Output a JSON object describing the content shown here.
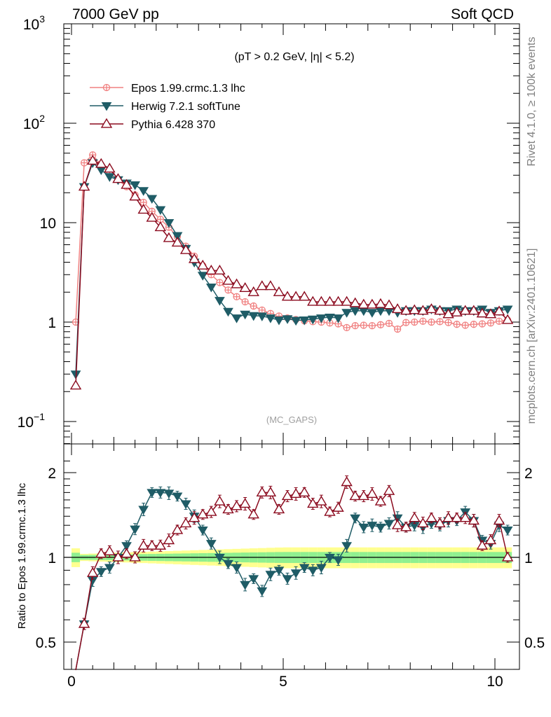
{
  "header": {
    "left": "7000 GeV pp",
    "right": "Soft QCD"
  },
  "side_labels": {
    "top": "Rivet 4.1.0, ≥ 100k events",
    "bottom": "mcplots.cern.ch [arXiv:2401.10621]"
  },
  "plot": {
    "cut_label": "(pT > 0.2 GeV, |η| < 5.2)",
    "watermark": "(MC_GAPS)",
    "ratio_ylabel": "Ratio to Epos 1.99.crmc.1.3 lhc"
  },
  "legend": [
    {
      "name": "Epos 1.99.crmc.1.3 lhc",
      "color": "#f08080",
      "marker": "cross-circle"
    },
    {
      "name": "Herwig 7.2.1 softTune",
      "color": "#1f5c66",
      "marker": "triangle-down"
    },
    {
      "name": "Pythia 6.428 370",
      "color": "#8b0a1e",
      "marker": "triangle-up-open"
    }
  ],
  "chart_data": {
    "type": "line",
    "xlim": [
      -0.2,
      10.5
    ],
    "ylim": [
      0.07,
      1000
    ],
    "yscale": "log",
    "ratio_ylim": [
      0.38,
      2.35
    ],
    "x_ticks": [
      "0",
      "5",
      "10"
    ],
    "y_ticks_main": [
      "10^3",
      "10^2",
      "10",
      "1",
      "10^-1"
    ],
    "y_ticks_ratio": [
      "2",
      "1",
      "0.5"
    ],
    "x": [
      0.1,
      0.3,
      0.5,
      0.7,
      0.9,
      1.1,
      1.3,
      1.5,
      1.7,
      1.9,
      2.1,
      2.3,
      2.5,
      2.7,
      2.9,
      3.1,
      3.3,
      3.5,
      3.7,
      3.9,
      4.1,
      4.3,
      4.5,
      4.7,
      4.9,
      5.1,
      5.3,
      5.5,
      5.7,
      5.9,
      6.1,
      6.3,
      6.5,
      6.7,
      6.9,
      7.1,
      7.3,
      7.5,
      7.7,
      7.9,
      8.1,
      8.3,
      8.5,
      8.7,
      8.9,
      9.1,
      9.3,
      9.5,
      9.7,
      9.9,
      10.1,
      10.3
    ],
    "series": [
      {
        "name": "Epos 1.99.crmc.1.3 lhc",
        "values": [
          1.0,
          40,
          48,
          38,
          31,
          27,
          23,
          19,
          16,
          13,
          10.8,
          9.0,
          7.2,
          5.8,
          4.6,
          3.7,
          3.0,
          2.5,
          2.1,
          1.8,
          1.6,
          1.45,
          1.32,
          1.22,
          1.15,
          1.1,
          1.06,
          1.03,
          1.01,
          1.0,
          0.98,
          0.96,
          0.88,
          0.92,
          0.93,
          0.92,
          0.94,
          0.97,
          0.85,
          0.99,
          1.0,
          1.02,
          1.0,
          1.01,
          0.99,
          0.95,
          0.93,
          0.95,
          0.96,
          0.98,
          1.02,
          1.05
        ]
      },
      {
        "name": "Herwig 7.2.1 softTune",
        "values": [
          0.3,
          23,
          40,
          34,
          29,
          27,
          25,
          24,
          21,
          17.5,
          13.5,
          10.0,
          7.4,
          5.5,
          4.0,
          2.95,
          2.25,
          1.65,
          1.28,
          1.1,
          1.2,
          1.16,
          1.15,
          1.1,
          1.05,
          1.08,
          1.04,
          1.05,
          1.07,
          1.1,
          1.12,
          1.1,
          1.25,
          1.3,
          1.3,
          1.25,
          1.3,
          1.3,
          1.25,
          1.3,
          1.3,
          1.3,
          1.35,
          1.3,
          1.3,
          1.35,
          1.3,
          1.3,
          1.35,
          1.25,
          1.3,
          1.35
        ]
      },
      {
        "name": "Pythia 6.428 370",
        "values": [
          0.23,
          23,
          42,
          39,
          35,
          27.5,
          24,
          18.3,
          13.5,
          11.2,
          9.0,
          7.0,
          6.3,
          5.3,
          4.3,
          3.7,
          3.3,
          3.3,
          2.6,
          2.4,
          2.2,
          2.0,
          2.3,
          2.3,
          2.0,
          1.8,
          1.8,
          1.8,
          1.6,
          1.6,
          1.6,
          1.6,
          1.6,
          1.55,
          1.5,
          1.5,
          1.52,
          1.48,
          1.35,
          1.3,
          1.32,
          1.3,
          1.35,
          1.3,
          1.2,
          1.25,
          1.3,
          1.3,
          1.22,
          1.2,
          1.28,
          1.05
        ]
      }
    ],
    "ratio_series": [
      {
        "name": "Herwig 7.2.1 softTune",
        "values": [
          0.3,
          0.58,
          0.83,
          0.89,
          0.92,
          1.0,
          1.1,
          1.26,
          1.48,
          1.7,
          1.7,
          1.69,
          1.65,
          1.55,
          1.4,
          1.25,
          1.12,
          1.0,
          0.95,
          0.92,
          0.8,
          0.84,
          0.76,
          0.87,
          0.9,
          0.84,
          0.88,
          0.92,
          0.9,
          0.92,
          1.0,
          0.98,
          1.1,
          1.38,
          1.28,
          1.3,
          1.28,
          1.32,
          1.38,
          1.28,
          1.3,
          1.28,
          1.32,
          1.3,
          1.35,
          1.35,
          1.45,
          1.35,
          1.15,
          1.12,
          1.3,
          1.25
        ]
      },
      {
        "name": "Pythia 6.428 370",
        "values": [
          0.23,
          0.58,
          0.88,
          1.03,
          1.05,
          1.0,
          1.03,
          1.0,
          1.1,
          1.1,
          1.1,
          1.15,
          1.25,
          1.32,
          1.38,
          1.42,
          1.45,
          1.58,
          1.48,
          1.52,
          1.55,
          1.42,
          1.7,
          1.7,
          1.48,
          1.65,
          1.68,
          1.7,
          1.55,
          1.58,
          1.45,
          1.5,
          1.85,
          1.65,
          1.65,
          1.68,
          1.58,
          1.72,
          1.3,
          1.28,
          1.38,
          1.32,
          1.38,
          1.32,
          1.38,
          1.38,
          1.38,
          1.35,
          1.1,
          1.15,
          1.35,
          1.0
        ]
      }
    ],
    "uncertainty_band": {
      "inner": 0.045,
      "outer": 0.085,
      "reference": 1.0
    }
  }
}
